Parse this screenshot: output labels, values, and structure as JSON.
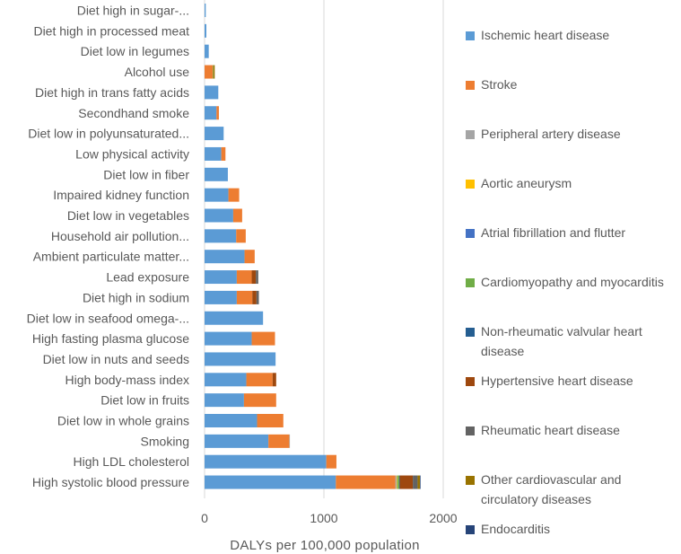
{
  "chart_data": {
    "type": "bar",
    "orientation": "horizontal",
    "stacked": true,
    "xlabel": "DALYs per 100,000 population",
    "xlim": [
      0,
      2000
    ],
    "xticks": [
      "0",
      "1000",
      "2000"
    ],
    "legend_position": "right",
    "categories": [
      "Diet high in sugar-...",
      "Diet high in processed meat",
      "Diet low in legumes",
      "Alcohol use",
      "Diet high in trans fatty acids",
      "Secondhand smoke",
      "Diet low in polyunsaturated...",
      "Low physical activity",
      "Diet low in fiber",
      "Impaired kidney function",
      "Diet low in vegetables",
      "Household air pollution...",
      "Ambient particulate matter...",
      "Lead exposure",
      "Diet high in sodium",
      "Diet low in seafood omega-...",
      "High fasting plasma glucose",
      "Diet low in nuts and seeds",
      "High body-mass index",
      "Diet low in fruits",
      "Diet low in whole grains",
      "Smoking",
      "High LDL cholesterol",
      "High systolic blood pressure"
    ],
    "series": [
      {
        "name": "Ischemic heart disease",
        "color": "#5B9BD5",
        "values": [
          10,
          15,
          35,
          0,
          115,
          100,
          160,
          140,
          195,
          200,
          240,
          265,
          335,
          270,
          270,
          490,
          395,
          595,
          350,
          330,
          440,
          535,
          1020,
          1100
        ]
      },
      {
        "name": "Stroke",
        "color": "#ED7D31",
        "values": [
          0,
          0,
          0,
          70,
          0,
          20,
          0,
          35,
          0,
          90,
          75,
          80,
          85,
          125,
          130,
          0,
          195,
          0,
          220,
          270,
          220,
          175,
          85,
          500
        ]
      },
      {
        "name": "Peripheral artery disease",
        "color": "#A5A5A5",
        "values": [
          0,
          0,
          0,
          0,
          0,
          0,
          0,
          0,
          0,
          0,
          0,
          0,
          0,
          0,
          0,
          0,
          0,
          0,
          0,
          0,
          0,
          5,
          0,
          10
        ]
      },
      {
        "name": "Aortic aneurysm",
        "color": "#FFC000",
        "values": [
          0,
          0,
          0,
          0,
          0,
          0,
          0,
          0,
          0,
          0,
          0,
          0,
          0,
          0,
          0,
          0,
          0,
          0,
          0,
          0,
          0,
          0,
          0,
          5
        ]
      },
      {
        "name": "Atrial fibrillation and flutter",
        "color": "#4472C4",
        "values": [
          0,
          0,
          0,
          0,
          0,
          0,
          0,
          0,
          0,
          0,
          0,
          0,
          0,
          0,
          0,
          0,
          0,
          0,
          0,
          0,
          0,
          0,
          0,
          0
        ]
      },
      {
        "name": "Cardiomyopathy and myocarditis",
        "color": "#70AD47",
        "values": [
          0,
          0,
          0,
          5,
          0,
          0,
          0,
          0,
          0,
          0,
          0,
          0,
          0,
          0,
          0,
          0,
          0,
          0,
          0,
          0,
          0,
          0,
          0,
          15
        ]
      },
      {
        "name": "Non-rheumatic valvular heart disease",
        "color": "#255E91",
        "values": [
          0,
          0,
          0,
          0,
          0,
          0,
          0,
          0,
          0,
          0,
          0,
          0,
          0,
          0,
          0,
          0,
          0,
          0,
          0,
          0,
          0,
          0,
          0,
          5
        ]
      },
      {
        "name": "Hypertensive heart disease",
        "color": "#9E480E",
        "values": [
          0,
          0,
          0,
          0,
          0,
          0,
          0,
          0,
          0,
          0,
          0,
          0,
          0,
          35,
          35,
          0,
          0,
          0,
          30,
          0,
          0,
          0,
          0,
          110
        ]
      },
      {
        "name": "Rheumatic heart disease",
        "color": "#636363",
        "values": [
          0,
          0,
          0,
          0,
          0,
          0,
          0,
          0,
          0,
          0,
          0,
          0,
          0,
          20,
          20,
          0,
          0,
          0,
          0,
          0,
          0,
          0,
          0,
          40
        ]
      },
      {
        "name": "Other cardiovascular and circulatory diseases",
        "color": "#997300",
        "values": [
          0,
          0,
          0,
          10,
          0,
          0,
          0,
          0,
          0,
          0,
          0,
          0,
          0,
          0,
          0,
          0,
          0,
          0,
          0,
          0,
          0,
          0,
          0,
          20
        ]
      },
      {
        "name": "Endocarditis",
        "color": "#264478",
        "values": [
          0,
          0,
          0,
          0,
          0,
          0,
          0,
          0,
          0,
          0,
          0,
          0,
          0,
          0,
          0,
          0,
          0,
          0,
          0,
          0,
          0,
          0,
          0,
          5
        ]
      }
    ]
  }
}
